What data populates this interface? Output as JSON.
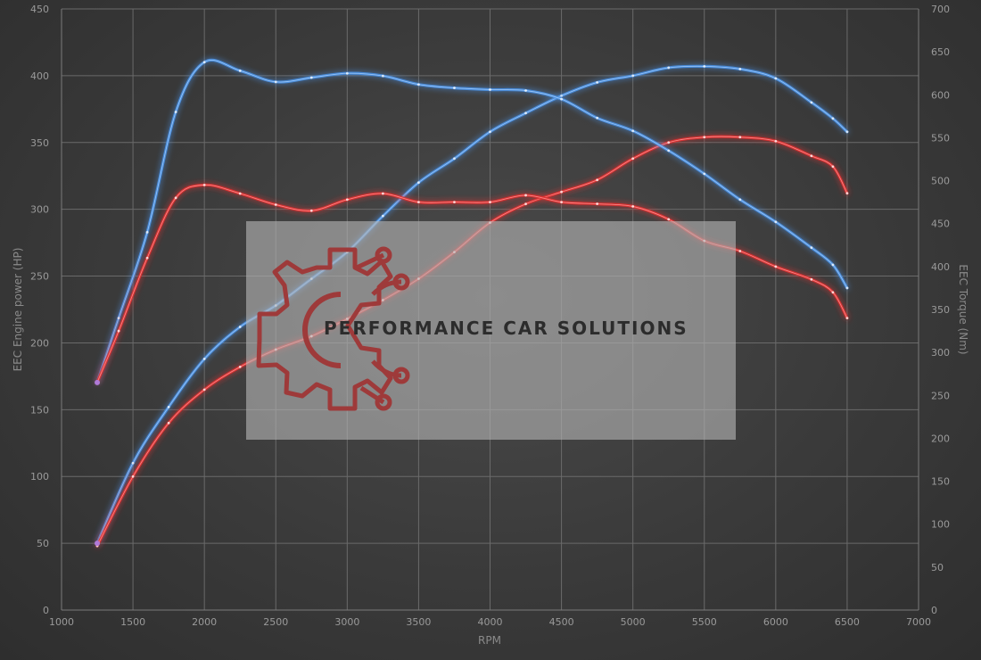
{
  "chart_data": {
    "type": "line",
    "xlabel": "RPM",
    "ylabel": "EEC Engine power (HP)",
    "y2label": "EEC Torque (Nm)",
    "xlim": [
      1000,
      7000
    ],
    "ylim": [
      0,
      450
    ],
    "y2lim": [
      0,
      700
    ],
    "x_ticks": [
      1000,
      1500,
      2000,
      2500,
      3000,
      3500,
      4000,
      4500,
      5000,
      5500,
      6000,
      6500,
      7000
    ],
    "y_ticks": [
      0,
      50,
      100,
      150,
      200,
      250,
      300,
      350,
      400,
      450
    ],
    "y2_ticks": [
      0,
      50,
      100,
      150,
      200,
      250,
      300,
      350,
      400,
      450,
      500,
      550,
      600,
      650,
      700
    ],
    "grid": true,
    "series": [
      {
        "axis": "left",
        "color": "#4a90e2",
        "x": [
          1250,
          1500,
          1750,
          2000,
          2250,
          2500,
          2750,
          3000,
          3250,
          3500,
          3750,
          4000,
          4250,
          4500,
          4750,
          5000,
          5250,
          5500,
          5750,
          6000,
          6250,
          6400,
          6500
        ],
        "y": [
          50,
          110,
          152,
          188,
          212,
          228,
          248,
          268,
          295,
          320,
          338,
          358,
          372,
          385,
          395,
          400,
          406,
          407,
          405,
          398,
          380,
          368,
          358
        ]
      },
      {
        "axis": "left",
        "color": "#e03030",
        "x": [
          1250,
          1500,
          1750,
          2000,
          2250,
          2500,
          2750,
          3000,
          3250,
          3500,
          3750,
          4000,
          4250,
          4500,
          4750,
          5000,
          5250,
          5500,
          5750,
          6000,
          6250,
          6400,
          6500
        ],
        "y": [
          48,
          100,
          140,
          165,
          182,
          195,
          205,
          218,
          232,
          248,
          268,
          290,
          304,
          313,
          322,
          338,
          350,
          354,
          354,
          351,
          340,
          332,
          312
        ]
      },
      {
        "axis": "right",
        "color": "#4a90e2",
        "x": [
          1250,
          1400,
          1600,
          1800,
          2000,
          2250,
          2500,
          2750,
          3000,
          3250,
          3500,
          3750,
          4000,
          4250,
          4500,
          4750,
          5000,
          5250,
          5500,
          5750,
          6000,
          6250,
          6400,
          6500
        ],
        "y": [
          265,
          340,
          440,
          580,
          638,
          628,
          615,
          620,
          625,
          622,
          612,
          608,
          606,
          605,
          595,
          573,
          558,
          535,
          508,
          478,
          452,
          422,
          402,
          375
        ]
      },
      {
        "axis": "right",
        "color": "#e03030",
        "x": [
          1250,
          1400,
          1600,
          1800,
          2000,
          2250,
          2500,
          2750,
          3000,
          3250,
          3500,
          3750,
          4000,
          4250,
          4500,
          4750,
          5000,
          5250,
          5500,
          5750,
          6000,
          6250,
          6400,
          6500
        ],
        "y": [
          265,
          325,
          410,
          480,
          495,
          485,
          472,
          465,
          478,
          485,
          475,
          475,
          475,
          483,
          475,
          473,
          470,
          455,
          430,
          418,
          400,
          385,
          370,
          340
        ]
      }
    ]
  },
  "watermark": {
    "text": "PERFORMANCE CAR SOLUTIONS",
    "logo_icon": "gear-circuit-logo-icon",
    "logo_color": "#9e3a3a"
  }
}
